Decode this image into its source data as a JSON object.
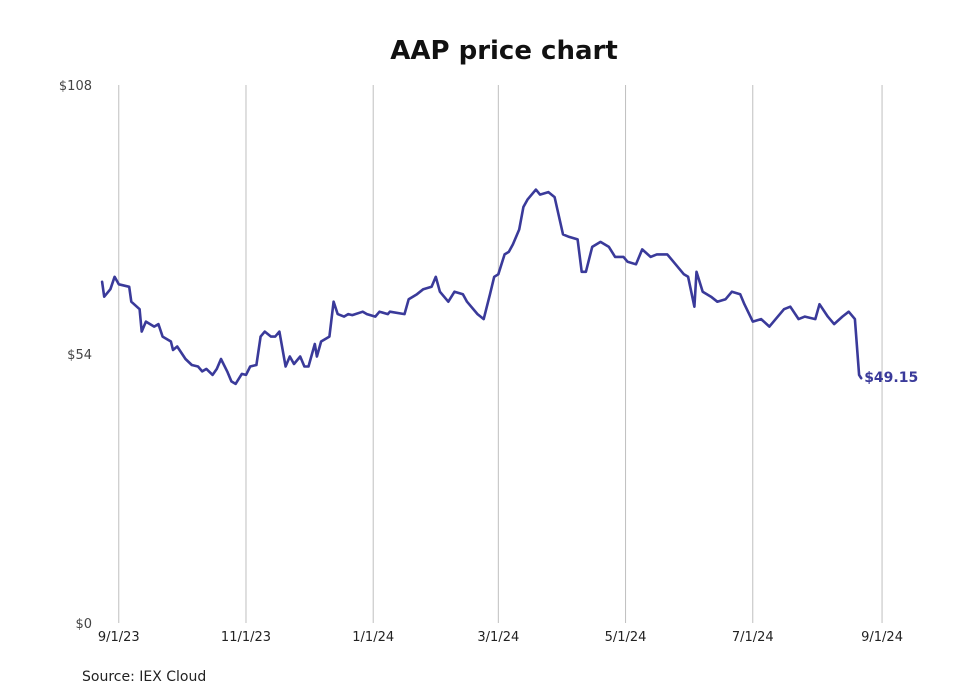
{
  "chart_data": {
    "type": "line",
    "title": "AAP price chart",
    "source": "Source: IEX Cloud",
    "y_ticks": [
      "$0",
      "$54",
      "$108"
    ],
    "y_tick_values": [
      0,
      54,
      108
    ],
    "ylim": [
      0,
      108
    ],
    "x_ticks": [
      "9/1/23",
      "11/1/23",
      "1/1/24",
      "3/1/24",
      "5/1/24",
      "7/1/24",
      "9/1/24"
    ],
    "x_tick_dates": [
      "2023-09-01",
      "2023-11-01",
      "2024-01-01",
      "2024-03-01",
      "2024-05-01",
      "2024-07-01",
      "2024-09-01"
    ],
    "xlim": [
      "2023-08-23",
      "2024-09-12"
    ],
    "grid": "vertical",
    "line_color": "#3a3a9a",
    "end_label": "$49.15",
    "series": [
      {
        "values": [
          [
            "2023-08-24",
            68.5
          ],
          [
            "2023-08-25",
            65.5
          ],
          [
            "2023-08-28",
            67.0
          ],
          [
            "2023-08-30",
            69.5
          ],
          [
            "2023-09-01",
            68.0
          ],
          [
            "2023-09-06",
            67.5
          ],
          [
            "2023-09-07",
            64.5
          ],
          [
            "2023-09-11",
            63.0
          ],
          [
            "2023-09-12",
            58.5
          ],
          [
            "2023-09-14",
            60.5
          ],
          [
            "2023-09-18",
            59.5
          ],
          [
            "2023-09-20",
            60.0
          ],
          [
            "2023-09-22",
            57.5
          ],
          [
            "2023-09-26",
            56.5
          ],
          [
            "2023-09-27",
            54.8
          ],
          [
            "2023-09-29",
            55.5
          ],
          [
            "2023-10-03",
            53.0
          ],
          [
            "2023-10-06",
            51.8
          ],
          [
            "2023-10-09",
            51.5
          ],
          [
            "2023-10-11",
            50.5
          ],
          [
            "2023-10-13",
            51.0
          ],
          [
            "2023-10-16",
            49.8
          ],
          [
            "2023-10-18",
            51.0
          ],
          [
            "2023-10-20",
            53.0
          ],
          [
            "2023-10-23",
            50.5
          ],
          [
            "2023-10-25",
            48.5
          ],
          [
            "2023-10-27",
            48.0
          ],
          [
            "2023-10-30",
            50.0
          ],
          [
            "2023-11-01",
            49.8
          ],
          [
            "2023-11-03",
            51.5
          ],
          [
            "2023-11-06",
            51.8
          ],
          [
            "2023-11-08",
            57.5
          ],
          [
            "2023-11-10",
            58.5
          ],
          [
            "2023-11-13",
            57.5
          ],
          [
            "2023-11-15",
            57.5
          ],
          [
            "2023-11-17",
            58.5
          ],
          [
            "2023-11-20",
            51.5
          ],
          [
            "2023-11-22",
            53.5
          ],
          [
            "2023-11-24",
            52.0
          ],
          [
            "2023-11-27",
            53.5
          ],
          [
            "2023-11-29",
            51.5
          ],
          [
            "2023-12-01",
            51.5
          ],
          [
            "2023-12-04",
            56.0
          ],
          [
            "2023-12-05",
            53.5
          ],
          [
            "2023-12-07",
            56.5
          ],
          [
            "2023-12-11",
            57.5
          ],
          [
            "2023-12-13",
            64.5
          ],
          [
            "2023-12-15",
            62.0
          ],
          [
            "2023-12-18",
            61.5
          ],
          [
            "2023-12-20",
            62.0
          ],
          [
            "2023-12-22",
            61.8
          ],
          [
            "2023-12-27",
            62.5
          ],
          [
            "2023-12-29",
            62.0
          ],
          [
            "2024-01-02",
            61.5
          ],
          [
            "2024-01-04",
            62.5
          ],
          [
            "2024-01-08",
            62.0
          ],
          [
            "2024-01-09",
            62.5
          ],
          [
            "2024-01-16",
            62.0
          ],
          [
            "2024-01-18",
            65.0
          ],
          [
            "2024-01-22",
            66.0
          ],
          [
            "2024-01-25",
            67.0
          ],
          [
            "2024-01-29",
            67.5
          ],
          [
            "2024-01-31",
            69.5
          ],
          [
            "2024-02-02",
            66.5
          ],
          [
            "2024-02-06",
            64.5
          ],
          [
            "2024-02-09",
            66.5
          ],
          [
            "2024-02-13",
            66.0
          ],
          [
            "2024-02-15",
            64.5
          ],
          [
            "2024-02-20",
            62.0
          ],
          [
            "2024-02-23",
            61.0
          ],
          [
            "2024-02-26",
            66.0
          ],
          [
            "2024-02-28",
            69.5
          ],
          [
            "2024-03-01",
            70.0
          ],
          [
            "2024-03-04",
            74.0
          ],
          [
            "2024-03-06",
            74.5
          ],
          [
            "2024-03-08",
            76.0
          ],
          [
            "2024-03-11",
            79.0
          ],
          [
            "2024-03-13",
            83.5
          ],
          [
            "2024-03-15",
            85.0
          ],
          [
            "2024-03-19",
            87.0
          ],
          [
            "2024-03-21",
            86.0
          ],
          [
            "2024-03-25",
            86.5
          ],
          [
            "2024-03-28",
            85.5
          ],
          [
            "2024-04-01",
            78.0
          ],
          [
            "2024-04-04",
            77.5
          ],
          [
            "2024-04-08",
            77.0
          ],
          [
            "2024-04-10",
            70.5
          ],
          [
            "2024-04-12",
            70.5
          ],
          [
            "2024-04-15",
            75.5
          ],
          [
            "2024-04-19",
            76.5
          ],
          [
            "2024-04-23",
            75.5
          ],
          [
            "2024-04-26",
            73.5
          ],
          [
            "2024-04-30",
            73.5
          ],
          [
            "2024-05-02",
            72.5
          ],
          [
            "2024-05-06",
            72.0
          ],
          [
            "2024-05-09",
            75.0
          ],
          [
            "2024-05-13",
            73.5
          ],
          [
            "2024-05-16",
            74.0
          ],
          [
            "2024-05-21",
            74.0
          ],
          [
            "2024-05-24",
            72.5
          ],
          [
            "2024-05-29",
            70.0
          ],
          [
            "2024-05-31",
            69.5
          ],
          [
            "2024-06-03",
            63.5
          ],
          [
            "2024-06-04",
            70.5
          ],
          [
            "2024-06-07",
            66.5
          ],
          [
            "2024-06-11",
            65.5
          ],
          [
            "2024-06-14",
            64.5
          ],
          [
            "2024-06-18",
            65.0
          ],
          [
            "2024-06-21",
            66.5
          ],
          [
            "2024-06-25",
            66.0
          ],
          [
            "2024-06-27",
            64.0
          ],
          [
            "2024-07-01",
            60.5
          ],
          [
            "2024-07-05",
            61.0
          ],
          [
            "2024-07-09",
            59.5
          ],
          [
            "2024-07-12",
            61.0
          ],
          [
            "2024-07-16",
            63.0
          ],
          [
            "2024-07-19",
            63.5
          ],
          [
            "2024-07-23",
            61.0
          ],
          [
            "2024-07-26",
            61.5
          ],
          [
            "2024-07-31",
            61.0
          ],
          [
            "2024-08-02",
            64.0
          ],
          [
            "2024-08-06",
            61.5
          ],
          [
            "2024-08-09",
            60.0
          ],
          [
            "2024-08-13",
            61.5
          ],
          [
            "2024-08-16",
            62.5
          ],
          [
            "2024-08-19",
            61.0
          ],
          [
            "2024-08-21",
            49.8
          ],
          [
            "2024-08-22",
            49.15
          ]
        ]
      }
    ]
  }
}
